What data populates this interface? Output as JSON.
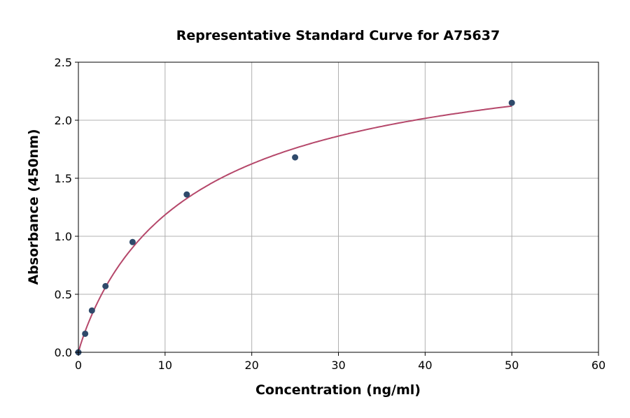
{
  "chart_data": {
    "type": "scatter",
    "title": "Representative Standard Curve for A75637",
    "xlabel": "Concentration (ng/ml)",
    "ylabel": "Absorbance (450nm)",
    "xlim": [
      0,
      60
    ],
    "ylim": [
      0,
      2.5
    ],
    "xticks": [
      "0",
      "10",
      "20",
      "30",
      "40",
      "50",
      "60"
    ],
    "yticks": [
      "0.0",
      "0.5",
      "1.0",
      "1.5",
      "2.0",
      "2.5"
    ],
    "grid": true,
    "points": {
      "x": [
        0,
        0.78,
        1.56,
        3.125,
        6.25,
        12.5,
        25,
        50
      ],
      "y": [
        0.0,
        0.16,
        0.36,
        0.57,
        0.95,
        1.36,
        1.68,
        2.15
      ]
    },
    "fit_curve": {
      "x_range": [
        0,
        50
      ]
    },
    "colors": {
      "points": "#2f4a6b",
      "curve": "#b5476a",
      "grid": "#b0b0b0"
    }
  }
}
